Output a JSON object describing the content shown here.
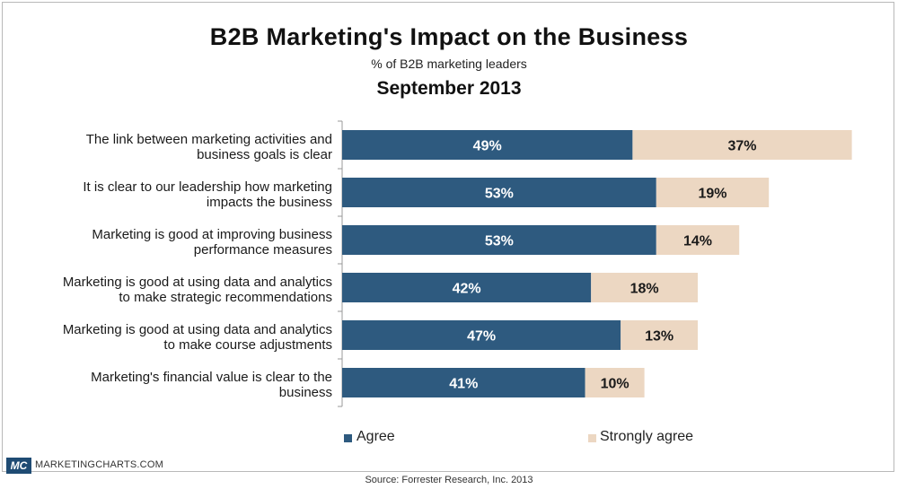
{
  "header": {
    "title": "B2B Marketing's Impact on the Business",
    "subtitle": "% of B2B marketing leaders",
    "date": "September 2013"
  },
  "footer": {
    "brand": "MARKETINGCHARTS.COM",
    "logo": "MC",
    "source": "Source: Forrester Research, Inc. 2013"
  },
  "colors": {
    "agree": "#2e5a7f",
    "strongly_agree": "#ecd7c2",
    "axis": "#999999"
  },
  "legend": {
    "agree": "Agree",
    "strongly_agree": "Strongly agree"
  },
  "chart_data": {
    "type": "bar",
    "orientation": "horizontal",
    "stacked": true,
    "categories": [
      [
        "The link between marketing activities and",
        "business goals is clear"
      ],
      [
        "It is clear to our leadership how marketing",
        "impacts the business"
      ],
      [
        "Marketing is good at improving business",
        "performance measures"
      ],
      [
        "Marketing is good at using data and analytics",
        "to make strategic recommendations"
      ],
      [
        "Marketing is good at using data and analytics",
        "to make course adjustments"
      ],
      [
        "Marketing's financial value is clear to the",
        "business"
      ]
    ],
    "series": [
      {
        "name": "Agree",
        "values": [
          49,
          53,
          53,
          42,
          47,
          41
        ]
      },
      {
        "name": "Strongly agree",
        "values": [
          37,
          19,
          14,
          18,
          13,
          10
        ]
      }
    ],
    "value_suffix": "%",
    "xlim": [
      0,
      86
    ],
    "legend_position": "bottom",
    "grid": false
  }
}
